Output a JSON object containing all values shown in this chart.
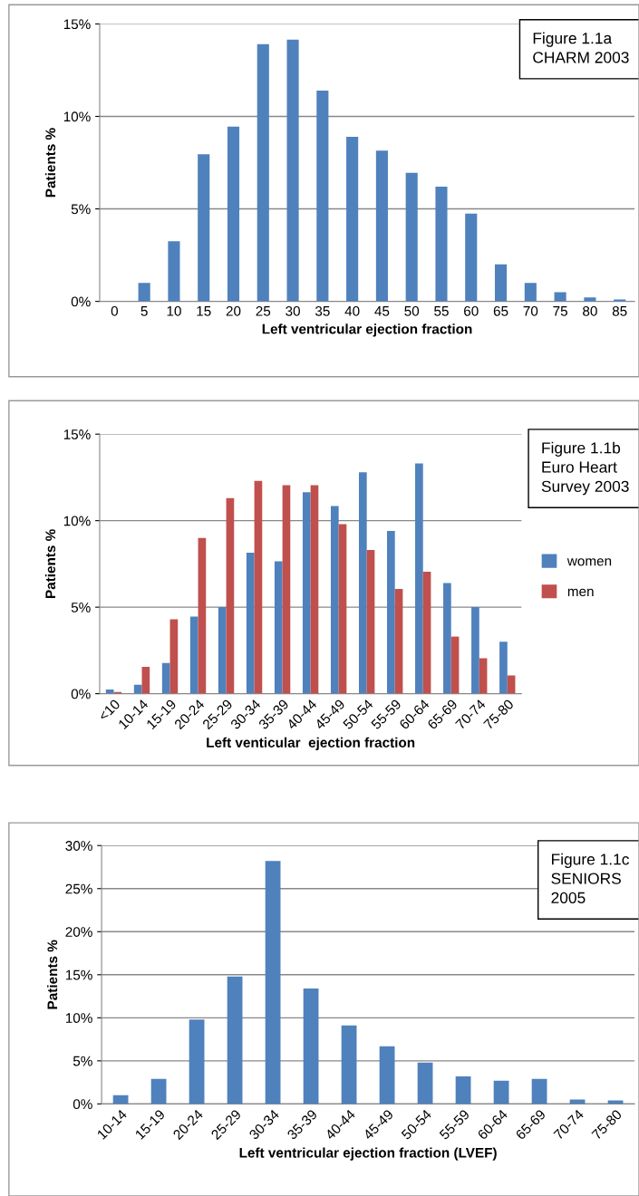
{
  "chart_data": [
    {
      "type": "bar",
      "annotations": [
        "Figure 1.1a\nCHARM 2003"
      ],
      "xlabel": "Left ventricular ejection fraction",
      "ylabel": "Patients %",
      "categories": [
        "0",
        "5",
        "10",
        "15",
        "20",
        "25",
        "30",
        "35",
        "40",
        "45",
        "50",
        "55",
        "60",
        "65",
        "70",
        "75",
        "80",
        "85"
      ],
      "series": [
        {
          "color": "#4f81bd",
          "values": [
            0,
            1.0,
            3.25,
            7.95,
            9.45,
            13.9,
            14.15,
            11.4,
            8.9,
            8.15,
            6.95,
            6.2,
            4.75,
            2.0,
            1.0,
            0.5,
            0.22,
            0.1
          ]
        }
      ],
      "ylim": [
        0,
        15
      ],
      "yticks": [
        {
          "value": 0,
          "label": "0%"
        },
        {
          "value": 5,
          "label": "5%"
        },
        {
          "value": 10,
          "label": "10%"
        },
        {
          "value": 15,
          "label": "15%"
        }
      ],
      "grid": "y"
    },
    {
      "type": "bar",
      "annotations": [
        "Figure 1.1b\nEuro Heart\nSurvey 2003"
      ],
      "xlabel": "Left venticular  ejection fraction",
      "ylabel": "Patients %",
      "categories": [
        "<10",
        "10-14",
        "15-19",
        "20-24",
        "25-29",
        "30-34",
        "35-39",
        "40-44",
        "45-49",
        "50-54",
        "55-59",
        "60-64",
        "65-69",
        "70-74",
        "75-80"
      ],
      "series": [
        {
          "name": "women",
          "color": "#4f81bd",
          "values": [
            0.24,
            0.52,
            1.77,
            4.45,
            5.0,
            8.15,
            7.65,
            11.65,
            10.85,
            12.8,
            9.4,
            13.3,
            6.4,
            5.0,
            3.0
          ]
        },
        {
          "name": "men",
          "color": "#c0504d",
          "values": [
            0.1,
            1.55,
            4.3,
            9.0,
            11.3,
            12.3,
            12.05,
            12.05,
            9.8,
            8.3,
            6.05,
            7.05,
            3.3,
            2.05,
            1.05
          ]
        }
      ],
      "ylim": [
        0,
        15
      ],
      "yticks": [
        {
          "value": 0,
          "label": "0%"
        },
        {
          "value": 5,
          "label": "5%"
        },
        {
          "value": 10,
          "label": "10%"
        },
        {
          "value": 15,
          "label": "15%"
        }
      ],
      "grid": "y",
      "legend": "right"
    },
    {
      "type": "bar",
      "annotations": [
        "Figure 1.1c\nSENIORS\n2005"
      ],
      "xlabel": "Left ventricular ejection fraction (LVEF)",
      "ylabel": "Patients %",
      "categories": [
        "10-14",
        "15-19",
        "20-24",
        "25-29",
        "30-34",
        "35-39",
        "40-44",
        "45-49",
        "50-54",
        "55-59",
        "60-64",
        "65-69",
        "70-74",
        "75-80"
      ],
      "series": [
        {
          "color": "#4f81bd",
          "values": [
            1.0,
            2.9,
            9.8,
            14.8,
            28.2,
            13.4,
            9.1,
            6.7,
            4.8,
            3.2,
            2.7,
            2.9,
            0.5,
            0.4
          ]
        }
      ],
      "ylim": [
        0,
        30
      ],
      "yticks": [
        {
          "value": 0,
          "label": "0%"
        },
        {
          "value": 5,
          "label": "5%"
        },
        {
          "value": 10,
          "label": "10%"
        },
        {
          "value": 15,
          "label": "15%"
        },
        {
          "value": 20,
          "label": "20%"
        },
        {
          "value": 25,
          "label": "25%"
        },
        {
          "value": 30,
          "label": "30%"
        }
      ],
      "grid": "y"
    }
  ]
}
